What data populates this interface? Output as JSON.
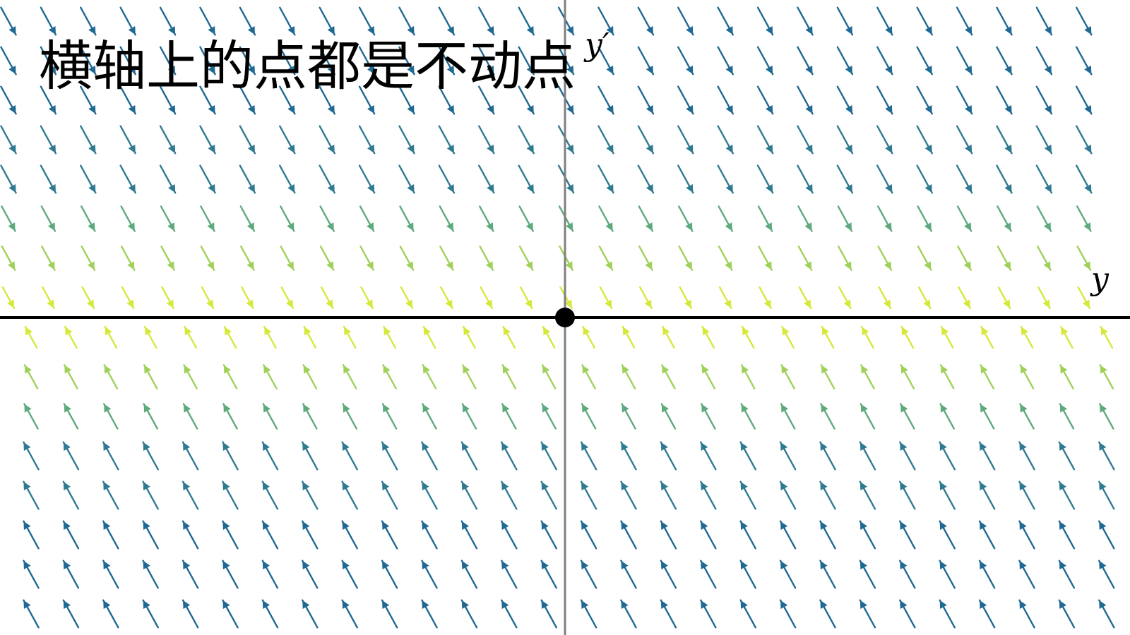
{
  "title": "横轴上的点都是不动点",
  "axes": {
    "horizontal_label": "y",
    "vertical_label": "y′"
  },
  "field": {
    "colors": {
      "near": "#d6e83a",
      "mid_near": "#9fd15a",
      "mid": "#5ea97e",
      "far": "#2f7a91",
      "farthest": "#1f6992"
    }
  },
  "colors": {
    "axis_horizontal": "#000000",
    "axis_vertical": "#808080",
    "fixed_point": "#000000",
    "background": "#ffffff"
  }
}
